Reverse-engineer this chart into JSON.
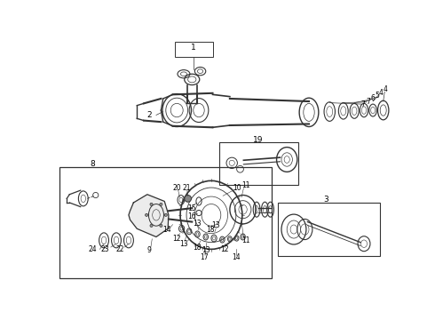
{
  "bg": "white",
  "lc": "#333333",
  "fs": 5.5,
  "fig_w": 4.9,
  "fig_h": 3.6,
  "dpi": 100
}
